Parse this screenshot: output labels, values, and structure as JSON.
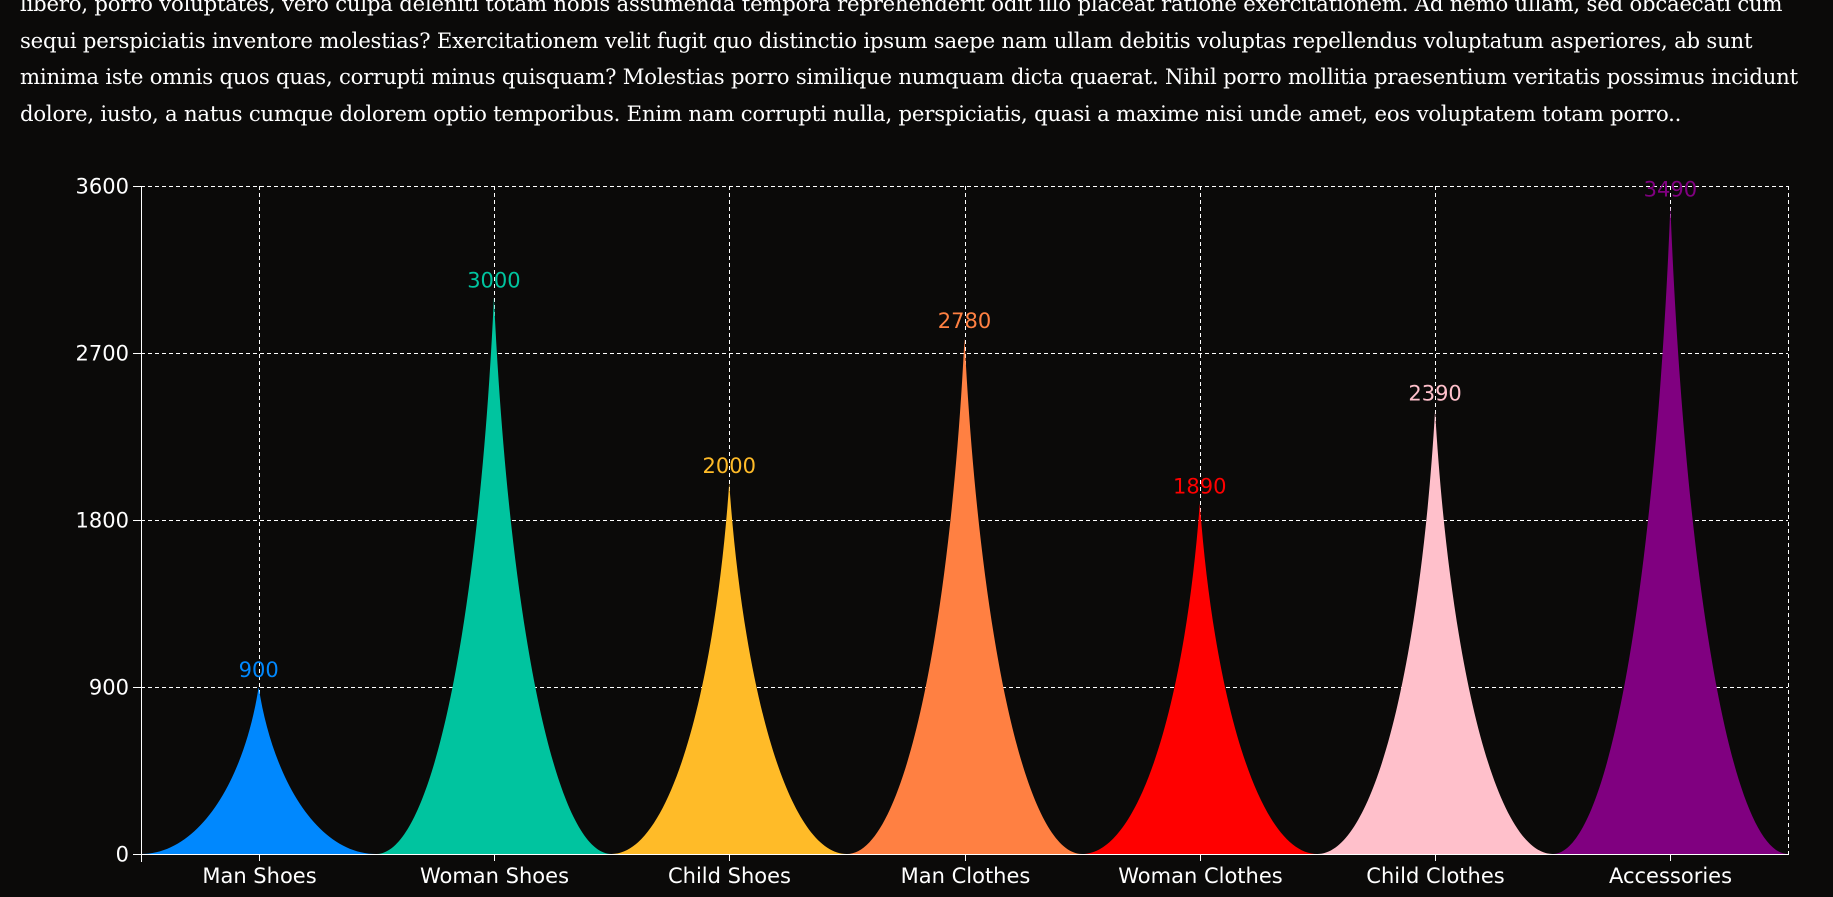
{
  "paragraph": {
    "text": "libero, porro voluptates, vero culpa deleniti totam nobis assumenda tempora reprehenderit odit illo placeat ratione exercitationem. Ad nemo ullam, sed obcaecati cum sequi perspiciatis inventore molestias? Exercitationem velit fugit quo distinctio ipsum saepe nam ullam debitis voluptas repellendus voluptatum asperiores, ab sunt minima iste omnis quos quas, corrupti minus quisquam? Molestias porro similique numquam dicta quaerat. Nihil porro mollitia praesentium veritatis possimus incidunt dolore, iusto, a natus cumque dolorem optio temporibus. Enim nam corrupti nulla, perspiciatis, quasi a maxime nisi unde amet, eos voluptatem totam porro.."
  },
  "chart_data": {
    "type": "bar",
    "bar_shape": "pyramid",
    "categories": [
      "Man Shoes",
      "Woman Shoes",
      "Child Shoes",
      "Man Clothes",
      "Woman Clothes",
      "Child Clothes",
      "Accessories"
    ],
    "values": [
      900,
      3000,
      2000,
      2780,
      1890,
      2390,
      3490
    ],
    "value_labels": [
      "900",
      "3000",
      "2000",
      "2780",
      "1890",
      "2390",
      "3490"
    ],
    "colors": [
      "#0088fe",
      "#00c49f",
      "#ffbb28",
      "#ff8042",
      "#ff0000",
      "#ffc0cb",
      "#800080"
    ],
    "y_ticks": [
      0,
      900,
      1800,
      2700,
      3600
    ],
    "y_tick_labels": [
      "0",
      "900",
      "1800",
      "2700",
      "3600"
    ],
    "ylim": [
      0,
      3600
    ],
    "grid": true,
    "grid_style": "dashed",
    "title": "",
    "xlabel": "",
    "ylabel": ""
  }
}
